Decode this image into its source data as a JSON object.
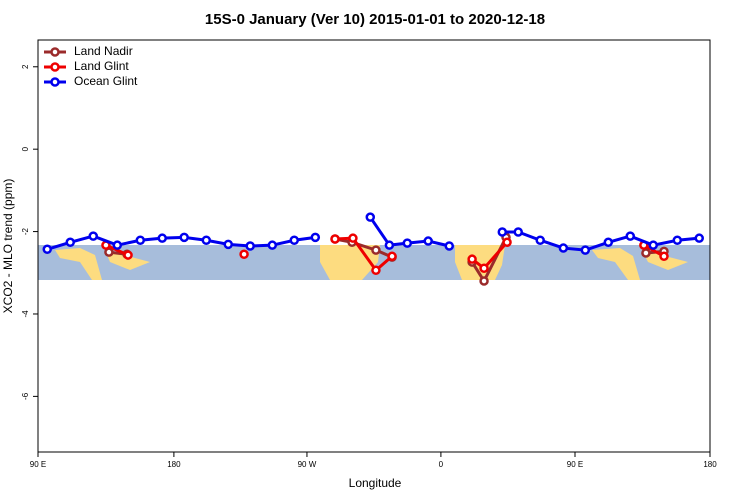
{
  "chart_data": {
    "type": "line",
    "title": "15S-0 January (Ver 10)   2015-01-01 to 2020-12-18",
    "x_label": "Longitude",
    "y_label": "XCO2 - MLO trend (ppm)",
    "xlim": [
      83.3,
      533.3
    ],
    "ylim": [
      -7.35,
      2.65
    ],
    "xticks": [
      {
        "value": 83.3,
        "label": "90 E"
      },
      {
        "value": 174.3,
        "label": "180"
      },
      {
        "value": 263.4,
        "label": "90 W"
      },
      {
        "value": 353.1,
        "label": "0"
      },
      {
        "value": 442.9,
        "label": "90 E"
      },
      {
        "value": 533.3,
        "label": "180"
      }
    ],
    "yticks": [
      2,
      0,
      -2,
      -4,
      -6
    ],
    "legend": "top-left",
    "series": [
      {
        "name": "Land Nadir",
        "color": "#9b2b2b",
        "x": [
          130.8,
          142.9,
          200,
          282.2,
          293.6,
          309.6,
          320.4,
          350,
          374,
          382,
          396.7,
          440,
          490.4,
          502.5
        ],
        "values": [
          -2.5,
          -2.55,
          null,
          -2.18,
          -2.26,
          -2.45,
          -2.62,
          null,
          -2.74,
          -3.2,
          -2.14,
          null,
          -2.52,
          -2.48
        ]
      },
      {
        "name": "Land Glint",
        "color": "#ee0000",
        "x": [
          128.8,
          143.6,
          180,
          221.3,
          250,
          282.2,
          294.2,
          309.6,
          320.4,
          350,
          374,
          382,
          397.4,
          440,
          489,
          502.5
        ],
        "values": [
          -2.33,
          -2.57,
          null,
          -2.55,
          null,
          -2.18,
          -2.16,
          -2.94,
          -2.6,
          null,
          -2.67,
          -2.89,
          -2.26,
          null,
          -2.33,
          -2.6
        ]
      },
      {
        "name": "Ocean Glint",
        "color": "#0000ee",
        "x": [
          89.5,
          104.9,
          120.3,
          136.4,
          151.8,
          166.5,
          181.2,
          196,
          210.7,
          225.4,
          240.2,
          254.9,
          269,
          287,
          305.8,
          318.6,
          330.6,
          344.6,
          358.7,
          376,
          394.2,
          404.9,
          419.6,
          435.1,
          449.8,
          465.2,
          479.9,
          495.3,
          511.4,
          526.1
        ],
        "values": [
          -2.43,
          -2.26,
          -2.11,
          -2.33,
          -2.21,
          -2.16,
          -2.14,
          -2.21,
          -2.31,
          -2.35,
          -2.33,
          -2.21,
          -2.14,
          null,
          -1.65,
          -2.33,
          -2.28,
          -2.23,
          -2.35,
          null,
          -2.01,
          -2.01,
          -2.21,
          -2.4,
          -2.45,
          -2.26,
          -2.11,
          -2.33,
          -2.21,
          -2.16
        ]
      }
    ]
  }
}
